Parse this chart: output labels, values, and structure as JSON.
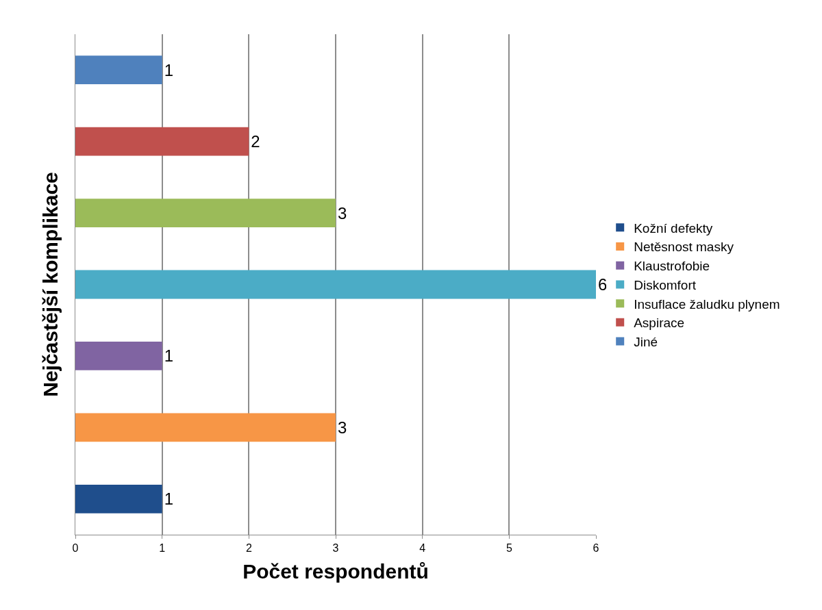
{
  "chart_data": {
    "type": "bar",
    "orientation": "horizontal",
    "xlabel": "Počet respondentů",
    "ylabel": "Nejčastější komplikace",
    "categories": [
      null,
      null,
      null,
      null,
      null,
      null,
      null
    ],
    "series": [
      {
        "name": "Kožní defekty",
        "color": "#1f4e8c",
        "values": [
          null,
          null,
          null,
          null,
          null,
          null,
          1
        ]
      },
      {
        "name": "Netěsnost masky",
        "color": "#f79646",
        "values": [
          null,
          null,
          null,
          null,
          null,
          3,
          null
        ]
      },
      {
        "name": "Klaustrofobie",
        "color": "#8064a2",
        "values": [
          null,
          null,
          null,
          null,
          1,
          null,
          null
        ]
      },
      {
        "name": "Diskomfort",
        "color": "#4bacc6",
        "values": [
          null,
          null,
          null,
          6,
          null,
          null,
          null
        ]
      },
      {
        "name": "Insuflace žaludku plynem",
        "color": "#9bbb59",
        "values": [
          null,
          null,
          3,
          null,
          null,
          null,
          null
        ]
      },
      {
        "name": "Aspirace",
        "color": "#c0504d",
        "values": [
          null,
          2,
          null,
          null,
          null,
          null,
          null
        ]
      },
      {
        "name": "Jiné",
        "color": "#4f81bd",
        "values": [
          1,
          null,
          null,
          null,
          null,
          null,
          null
        ]
      }
    ],
    "xlim": [
      0,
      6
    ],
    "xticks": [
      0,
      1,
      2,
      3,
      4,
      5,
      6
    ],
    "grid": "x",
    "legend": "right",
    "data_labels": true,
    "tick_labels": "x"
  }
}
